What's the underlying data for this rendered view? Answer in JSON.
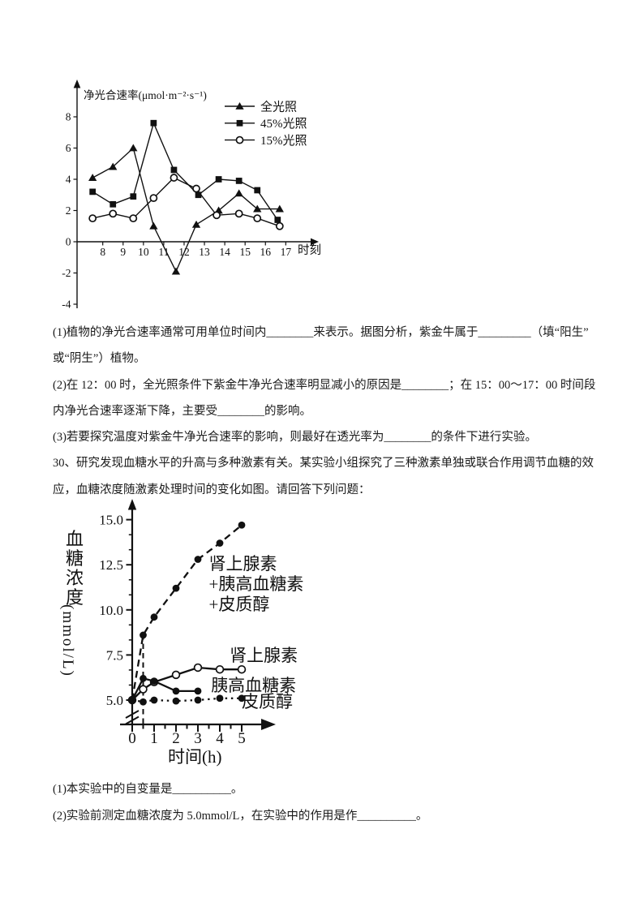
{
  "page": {
    "kind": "biology-exam-worksheet",
    "background_color": "#ffffff",
    "ink_color": "#111111"
  },
  "questions": {
    "q29_parts": [
      "(1)植物的净光合速率通常可用单位时间内________来表示。据图分析，紫金牛属于_________（填“阳生”",
      "或“阴生”）植物。",
      "(2)在 12：00 时，全光照条件下紫金牛净光合速率明显减小的原因是________；在 15：00～17：00 时间段",
      "内净光合速率逐渐下降，主要受________的影响。",
      "(3)若要探究温度对紫金牛净光合速率的影响，则最好在透光率为________的条件下进行实验。"
    ],
    "q30_stem": [
      "30、研究发现血糖水平的升高与多种激素有关。某实验小组探究了三种激素单独或联合作用调节血糖的效",
      "应，血糖浓度随激素处理时间的变化如图。请回答下列问题："
    ],
    "q30_parts": [
      "(1)本实验中的自变量是__________。",
      "(2)实验前测定血糖浓度为 5.0mmol/L，在实验中的作用是作__________。"
    ]
  },
  "chart_data": [
    {
      "type": "line",
      "id": "net-photosynthesis-vs-time",
      "title": "",
      "ylabel": "净光合速率(μmol·m⁻²·s⁻¹)",
      "xlabel": "时刻",
      "x_ticks": [
        8,
        9,
        10,
        11,
        12,
        13,
        14,
        15,
        16,
        17
      ],
      "y_ticks": [
        -4,
        -2,
        0,
        2,
        4,
        6,
        8
      ],
      "xlim": [
        7.2,
        17.8
      ],
      "ylim": [
        -4.5,
        9
      ],
      "grid": false,
      "legend_position": "top-right",
      "series": [
        {
          "name": "全光照",
          "marker": "triangle",
          "line_style": "solid",
          "points": [
            [
              7.5,
              4.1
            ],
            [
              8.5,
              4.8
            ],
            [
              9.5,
              6.0
            ],
            [
              10.5,
              1.0
            ],
            [
              11.6,
              -1.9
            ],
            [
              12.6,
              1.1
            ],
            [
              13.7,
              2.0
            ],
            [
              14.7,
              3.1
            ],
            [
              15.6,
              2.1
            ],
            [
              16.7,
              2.1
            ]
          ]
        },
        {
          "name": "45%光照",
          "marker": "square",
          "line_style": "solid",
          "points": [
            [
              7.5,
              3.2
            ],
            [
              8.5,
              2.4
            ],
            [
              9.5,
              2.9
            ],
            [
              10.5,
              7.6
            ],
            [
              11.5,
              4.6
            ],
            [
              12.7,
              3.0
            ],
            [
              13.7,
              4.0
            ],
            [
              14.7,
              3.9
            ],
            [
              15.6,
              3.3
            ],
            [
              16.6,
              1.4
            ]
          ]
        },
        {
          "name": "15%光照",
          "marker": "circle-open",
          "line_style": "solid",
          "points": [
            [
              7.5,
              1.5
            ],
            [
              8.5,
              1.8
            ],
            [
              9.5,
              1.5
            ],
            [
              10.5,
              2.8
            ],
            [
              11.5,
              4.1
            ],
            [
              12.6,
              3.4
            ],
            [
              13.6,
              1.7
            ],
            [
              14.7,
              1.8
            ],
            [
              15.6,
              1.5
            ],
            [
              16.7,
              1.0
            ]
          ]
        }
      ]
    },
    {
      "type": "line",
      "id": "blood-glucose-vs-hormone-time",
      "title": "",
      "ylabel": "血糖浓度",
      "ylabel_unit": "(mmol/L)",
      "xlabel": "时间(h)",
      "x_ticks": [
        0,
        1,
        2,
        3,
        4,
        5
      ],
      "x_minor_step": 0.5,
      "y_ticks": [
        5.0,
        7.5,
        10.0,
        12.5,
        15.0
      ],
      "y_tick_labels": [
        "5.0",
        "7.5",
        "10.0",
        "12.5",
        "15.0"
      ],
      "xlim": [
        0,
        5.5
      ],
      "ylim": [
        5,
        15.5
      ],
      "grid": false,
      "axis_break_below_first_tick": true,
      "baseline_value": "5.0mmol/L",
      "guide_line": {
        "x": 0.5,
        "to_y": 8.6,
        "style": "dashed"
      },
      "series": [
        {
          "name": "肾上腺素+胰高血糖素+皮质醇",
          "marker": "dot",
          "line_style": "dashed",
          "points": [
            [
              0,
              5.0
            ],
            [
              0.5,
              8.6
            ],
            [
              1,
              9.6
            ],
            [
              2,
              11.2
            ],
            [
              3,
              12.8
            ],
            [
              4,
              13.7
            ],
            [
              5,
              14.7
            ]
          ],
          "label": {
            "lines": [
              "肾上腺素",
              "+胰高血糖素",
              "+皮质醇"
            ],
            "x": 3.5,
            "y": 12.25
          }
        },
        {
          "name": "肾上腺素",
          "marker": "circle-open",
          "line_style": "solid",
          "points": [
            [
              0,
              5.0
            ],
            [
              0.5,
              5.6
            ],
            [
              1,
              6.0
            ],
            [
              2,
              6.4
            ],
            [
              3,
              6.8
            ],
            [
              4,
              6.7
            ],
            [
              5,
              6.7
            ]
          ],
          "label": {
            "lines": [
              "肾上腺素"
            ],
            "x": 4.45,
            "y": 7.15
          }
        },
        {
          "name": "胰高血糖素",
          "marker": "dot",
          "line_style": "solid",
          "points": [
            [
              0,
              5.0
            ],
            [
              0.5,
              6.2
            ],
            [
              1,
              6.05
            ],
            [
              2,
              5.5
            ],
            [
              3,
              5.5
            ]
          ],
          "label": {
            "lines": [
              "胰高血糖素"
            ],
            "x": 3.6,
            "y": 5.5
          }
        },
        {
          "name": "皮质醇",
          "marker": "dot",
          "line_style": "dotted",
          "points": [
            [
              0,
              5.0
            ],
            [
              0.5,
              4.9
            ],
            [
              1,
              5.0
            ],
            [
              2,
              4.95
            ],
            [
              3,
              5.0
            ],
            [
              4,
              5.1
            ],
            [
              5,
              5.1
            ]
          ],
          "label": {
            "lines": [
              "皮质醇"
            ],
            "x": 5.0,
            "y": 4.6
          }
        }
      ]
    }
  ]
}
